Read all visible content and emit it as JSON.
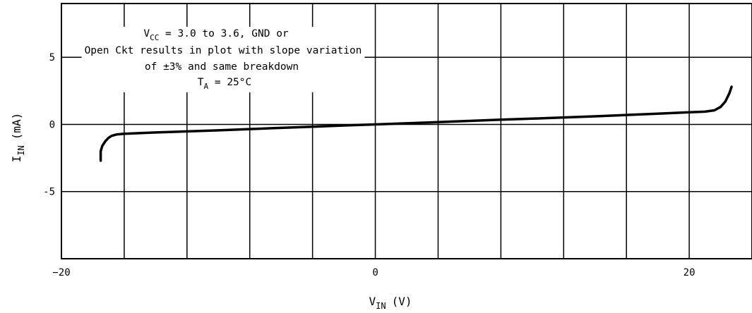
{
  "chart_data": {
    "type": "line",
    "xlabel": {
      "main": "V",
      "sub": "IN",
      "unit": "(V)"
    },
    "ylabel": {
      "main": "I",
      "sub": "IN",
      "unit": "(mA)"
    },
    "xlim": [
      -20,
      24
    ],
    "ylim": [
      -10,
      9
    ],
    "x_ticks": [
      {
        "value": -20,
        "label": "−20"
      },
      {
        "value": 0,
        "label": "0"
      },
      {
        "value": 20,
        "label": "20"
      }
    ],
    "y_ticks": [
      {
        "value": 5,
        "label": "5"
      },
      {
        "value": 0,
        "label": "0"
      },
      {
        "value": -5,
        "label": "-5"
      }
    ],
    "grid": true,
    "grid_x": [
      -20,
      -16,
      -12,
      -8,
      -4,
      0,
      4,
      8,
      12,
      16,
      20
    ],
    "grid_y": [
      5,
      0,
      -5,
      -10
    ],
    "series": [
      {
        "color": "#000000",
        "points": [
          [
            -17.5,
            -2.7
          ],
          [
            -17.5,
            -2.0
          ],
          [
            -17.4,
            -1.6
          ],
          [
            -17.2,
            -1.25
          ],
          [
            -17.0,
            -1.0
          ],
          [
            -16.8,
            -0.85
          ],
          [
            -16.5,
            -0.75
          ],
          [
            -16.0,
            -0.7
          ],
          [
            -14.0,
            -0.6
          ],
          [
            -12.0,
            -0.52
          ],
          [
            -10.0,
            -0.44
          ],
          [
            -8.0,
            -0.35
          ],
          [
            -6.0,
            -0.26
          ],
          [
            -4.0,
            -0.17
          ],
          [
            -2.0,
            -0.08
          ],
          [
            0.0,
            0.0
          ],
          [
            2.0,
            0.08
          ],
          [
            4.0,
            0.17
          ],
          [
            6.0,
            0.26
          ],
          [
            8.0,
            0.35
          ],
          [
            10.0,
            0.43
          ],
          [
            12.0,
            0.52
          ],
          [
            14.0,
            0.6
          ],
          [
            16.0,
            0.7
          ],
          [
            18.0,
            0.8
          ],
          [
            20.0,
            0.9
          ],
          [
            21.0,
            0.95
          ],
          [
            21.6,
            1.05
          ],
          [
            22.0,
            1.3
          ],
          [
            22.3,
            1.7
          ],
          [
            22.55,
            2.3
          ],
          [
            22.7,
            2.8
          ]
        ]
      }
    ],
    "annotation": {
      "line1_main": "V",
      "line1_sub": "CC",
      "line1_rest": " = 3.0 to 3.6, GND or",
      "line2": "Open Ckt results in plot with slope variation",
      "line3": "of ±3% and same breakdown",
      "line4_main": "T",
      "line4_sub": "A",
      "line4_rest": " = 25°C"
    }
  }
}
